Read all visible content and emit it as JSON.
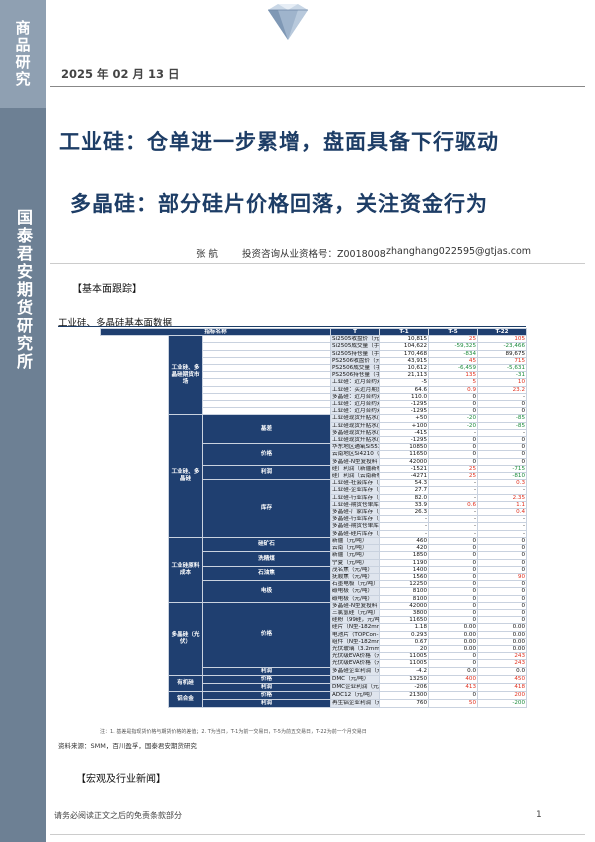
{
  "sidebar": {
    "top_label": "商品研究",
    "main_label": "国泰君安期货研究所"
  },
  "header": {
    "date": "2025 年 02 月 13 日"
  },
  "title": {
    "line1": "工业硅：仓单进一步累增，盘面具备下行驱动",
    "line2": "多晶硅：部分硅片价格回落，关注资金行为"
  },
  "author": {
    "name": "张 航",
    "qualification": "投资咨询从业资格号：Z0018008",
    "email": "zhanghang022595@gtjas.com"
  },
  "sections": {
    "basics": "【基本面跟踪】",
    "macro": "【宏观及行业新闻】"
  },
  "table": {
    "caption": "工业硅、多晶硅基本面数据",
    "headers": [
      "指标名称",
      "T",
      "T-1",
      "T-5",
      "T-22"
    ],
    "groups": [
      {
        "label": "工业硅、多晶硅期货市场",
        "col": 1,
        "row": 0,
        "rows": 11
      },
      {
        "label": "工业硅、多晶硅",
        "col": 1,
        "row": 11,
        "rows": 17
      },
      {
        "label": "基差",
        "col": 2,
        "row": 11,
        "rows": 4
      },
      {
        "label": "价格",
        "col": 2,
        "row": 15,
        "rows": 3
      },
      {
        "label": "利润",
        "col": 2,
        "row": 18,
        "rows": 2
      },
      {
        "label": "库存",
        "col": 2,
        "row": 20,
        "rows": 8
      },
      {
        "label": "工业硅原料成本",
        "col": 1,
        "row": 28,
        "rows": 9
      },
      {
        "label": "硅矿石",
        "col": 2,
        "row": 28,
        "rows": 2
      },
      {
        "label": "洗精煤",
        "col": 2,
        "row": 30,
        "rows": 2
      },
      {
        "label": "石油焦",
        "col": 2,
        "row": 32,
        "rows": 2
      },
      {
        "label": "电极",
        "col": 2,
        "row": 34,
        "rows": 3
      },
      {
        "label": "多晶硅（光伏）",
        "col": 1,
        "row": 37,
        "rows": 10
      },
      {
        "label": "价格",
        "col": 2,
        "row": 37,
        "rows": 9
      },
      {
        "label": "利润",
        "col": 2,
        "row": 46,
        "rows": 1
      },
      {
        "label": "有机硅",
        "col": 1,
        "row": 47,
        "rows": 2
      },
      {
        "label": "价格",
        "col": 2,
        "row": 47,
        "rows": 1
      },
      {
        "label": "利润",
        "col": 2,
        "row": 48,
        "rows": 1
      },
      {
        "label": "铝合金",
        "col": 1,
        "row": 49,
        "rows": 2
      },
      {
        "label": "价格",
        "col": 2,
        "row": 49,
        "rows": 1
      },
      {
        "label": "利润",
        "col": 2,
        "row": 50,
        "rows": 1
      }
    ],
    "rows": [
      [
        "Si2505收盘价（元/吨）",
        "10,815",
        "25",
        "105",
        "35"
      ],
      [
        "Si2505成交量（手）",
        "104,622",
        "-59,325",
        "-23,466",
        "-40,041"
      ],
      [
        "Si2505持仓量（手）",
        "170,468",
        "-834",
        "89,675",
        "54,552"
      ],
      [
        "PS2506收盘价（元/吨）",
        "43,915",
        "45",
        "715",
        "-"
      ],
      [
        "PS2506成交量（手）",
        "10,612",
        "-6,459",
        "-5,631",
        "-"
      ],
      [
        "PS2506持仓量（手）",
        "21,113",
        "135",
        "-31",
        "-"
      ],
      [
        "工业硅：近月合约对连一价差（元/吨）",
        "-5",
        "5",
        "10",
        "-5"
      ],
      [
        "工业硅：买近月期货一跨期成本（元/吨）",
        "64.6",
        "0.9",
        "23.2",
        "-0.3"
      ],
      [
        "多晶硅：近月合约对连一价差（元/吨）",
        "110.0",
        "0",
        "-",
        "-"
      ],
      [
        "工业硅：近月合约对连一价差（元/吨）",
        "-1295",
        "0",
        "0",
        "-350"
      ],
      [
        "工业硅：近月合约对连一价差（元/吨）",
        "-1295",
        "0",
        "0",
        "-350"
      ],
      [
        "工业硅现货升贴水(对标华东Si4210)",
        "+50",
        "-20",
        "-85",
        "1,080"
      ],
      [
        "工业硅现货升贴水(对标天津99硅)",
        "+100",
        "-20",
        "-85",
        "1,850"
      ],
      [
        "多晶硅现货升贴水(对标N型复投)",
        "-415",
        "-",
        "-",
        "-"
      ],
      [
        "工业硅现货升贴水(对标华东SI5530)",
        "-1295",
        "0",
        "0",
        "-350"
      ],
      [
        "华东地区通氧Si5530（元/吨）",
        "10850",
        "0",
        "0",
        "-350"
      ],
      [
        "云南地区Si4210（元/吨）",
        "11650",
        "0",
        "0",
        "-200"
      ],
      [
        "多晶硅-N型复投料",
        "42000",
        "0",
        "0",
        "1000"
      ],
      [
        "硅厂利润（新疆新标553#，元/吨）",
        "-1521",
        "25",
        "-715",
        "-640"
      ],
      [
        "硅厂利润（云南新标553#，元/吨）",
        "-4271",
        "25",
        "-810",
        "-691"
      ],
      [
        "工业硅-社会库存（含仓单库存，万吨）",
        "54.3",
        "-",
        "0.3",
        "0.4"
      ],
      [
        "工业硅-企业库存（样本企业，万吨）",
        "27.7",
        "-",
        "-",
        "1.7"
      ],
      [
        "工业硅-行业库存（社会库存+企业库存）",
        "82.0",
        "-",
        "2.35",
        "2.14"
      ],
      [
        "工业硅-期货仓单库存（万吨）",
        "33.9",
        "0.6",
        "1.1",
        "6.6"
      ],
      [
        "多晶硅-厂家库存（万吨）",
        "26.3",
        "-",
        "0.4",
        "3.5"
      ],
      [
        "多晶硅-行业库存（万吨）",
        "-",
        "-",
        "-",
        "-"
      ],
      [
        "多晶硅-期货仓单库存（万吨）",
        "-",
        "-",
        "-",
        "-"
      ],
      [
        "多晶硅-硅片库存（万吨）",
        "-",
        "-",
        "-",
        "-"
      ],
      [
        "新疆（元/吨）",
        "460",
        "0",
        "0",
        "0"
      ],
      [
        "云南（元/吨）",
        "420",
        "0",
        "0",
        "0"
      ],
      [
        "新疆（元/吨）",
        "1850",
        "0",
        "0",
        "-275"
      ],
      [
        "宁夏（元/吨）",
        "1190",
        "0",
        "0",
        "-80"
      ],
      [
        "茂名焦（元/吨）",
        "1400",
        "0",
        "0",
        "0"
      ],
      [
        "抚顺焦（元/吨）",
        "1560",
        "0",
        "90",
        "150"
      ],
      [
        "石墨电极（元/吨）",
        "12250",
        "0",
        "0",
        "0"
      ],
      [
        "碳电极（元/吨）",
        "8100",
        "0",
        "0",
        "0"
      ],
      [
        "碳电极（元/吨）",
        "8100",
        "0",
        "0",
        "0"
      ],
      [
        "多晶硅-N型复投料",
        "42000",
        "0",
        "0",
        "1000"
      ],
      [
        "三氯氢硅（元/吨）",
        "3800",
        "0",
        "0",
        "0"
      ],
      [
        "硅粉（99硅，元/吨）",
        "11650",
        "0",
        "0",
        "0"
      ],
      [
        "硅片（N型-182mm，元/片）",
        "1.18",
        "0.00",
        "0.00",
        "0.10"
      ],
      [
        "电池片（TOPCon-M10，元/瓦）",
        "0.293",
        "0.00",
        "0.00",
        "-0.58"
      ],
      [
        "组件（N型-182mm，元/瓦）",
        "0.67",
        "0.00",
        "0.00",
        "0"
      ],
      [
        "光伏玻璃（3.2mm，元/平方米）",
        "20",
        "0.00",
        "0.00",
        "0"
      ],
      [
        "光伏级EVA价格（元/吨）",
        "11005",
        "0",
        "243",
        "395"
      ],
      [
        "光伏级EVA价格（元/吨）",
        "11005",
        "0",
        "243",
        "395"
      ],
      [
        "多晶硅企业利润（元/千克）",
        "-4.2",
        "0.0",
        "0.0",
        "0.3"
      ],
      [
        "DMC（元/吨）",
        "13250",
        "400",
        "450",
        "100"
      ],
      [
        "DMC企业利润（元/吨）",
        "-206",
        "413",
        "418",
        "337"
      ],
      [
        "ADC12（元/吨）",
        "21300",
        "0",
        "200",
        "400"
      ],
      [
        "再生铝企业利润（元/吨）",
        "760",
        "50",
        "-200",
        "-290"
      ]
    ],
    "red_cells": [
      [
        0,
        2
      ],
      [
        0,
        3
      ],
      [
        0,
        4
      ],
      [
        3,
        2
      ],
      [
        3,
        3
      ],
      [
        5,
        2
      ],
      [
        6,
        2
      ],
      [
        6,
        3
      ],
      [
        7,
        2
      ],
      [
        7,
        3
      ],
      [
        11,
        4
      ],
      [
        12,
        4
      ],
      [
        17,
        4
      ],
      [
        18,
        2
      ],
      [
        19,
        2
      ],
      [
        20,
        3
      ],
      [
        20,
        4
      ],
      [
        21,
        4
      ],
      [
        22,
        3
      ],
      [
        22,
        4
      ],
      [
        23,
        2
      ],
      [
        23,
        3
      ],
      [
        23,
        4
      ],
      [
        24,
        3
      ],
      [
        24,
        4
      ],
      [
        33,
        3
      ],
      [
        33,
        4
      ],
      [
        37,
        4
      ],
      [
        40,
        4
      ],
      [
        44,
        3
      ],
      [
        44,
        4
      ],
      [
        45,
        3
      ],
      [
        45,
        4
      ],
      [
        46,
        4
      ],
      [
        47,
        2
      ],
      [
        47,
        3
      ],
      [
        47,
        4
      ],
      [
        48,
        2
      ],
      [
        48,
        3
      ],
      [
        48,
        4
      ],
      [
        49,
        3
      ],
      [
        49,
        4
      ],
      [
        50,
        2
      ]
    ],
    "green_cells": [
      [
        1,
        2
      ],
      [
        1,
        3
      ],
      [
        1,
        4
      ],
      [
        2,
        2
      ],
      [
        4,
        2
      ],
      [
        4,
        3
      ],
      [
        5,
        3
      ],
      [
        9,
        4
      ],
      [
        10,
        4
      ],
      [
        11,
        2
      ],
      [
        11,
        3
      ],
      [
        12,
        2
      ],
      [
        12,
        3
      ],
      [
        14,
        4
      ],
      [
        15,
        4
      ],
      [
        16,
        4
      ],
      [
        18,
        3
      ],
      [
        18,
        4
      ],
      [
        19,
        3
      ],
      [
        19,
        4
      ],
      [
        30,
        4
      ],
      [
        31,
        4
      ],
      [
        41,
        4
      ],
      [
        50,
        3
      ],
      [
        50,
        4
      ]
    ],
    "note": "注：1. 基差是指现货价格与期货价格的差值；2. T为当日，T-1为前一交易日，T-5为前五交易日，T-22为前一个月交易日",
    "source": "资料来源：SMM，百川盈孚，国泰君安期货研究"
  },
  "footer": {
    "disclaimer": "请务必阅读正文之后的免责条款部分",
    "page": "1"
  }
}
